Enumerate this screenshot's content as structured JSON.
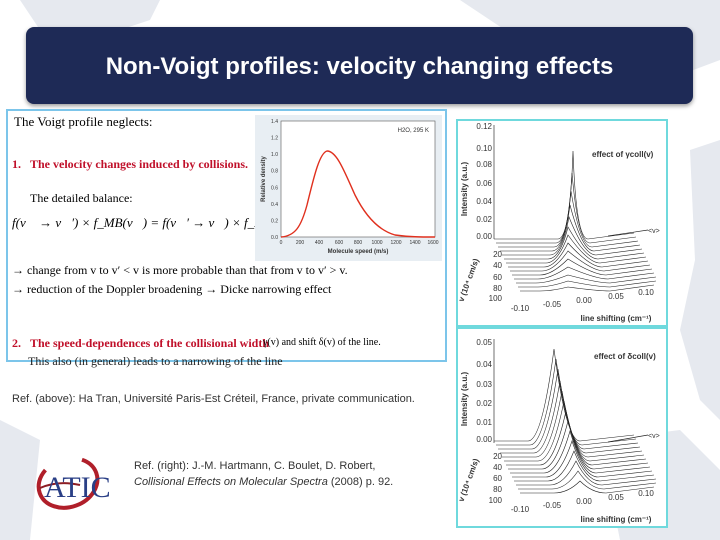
{
  "slide": {
    "title": "Non-Voigt profiles: velocity changing effects"
  },
  "left_panel": {
    "intro": "The Voigt profile neglects:",
    "item1_number": "1.",
    "item1_heading": "The velocity changes induced by collisions.",
    "balance_label": "The detailed balance:",
    "equation": "f(v⃗ → v⃗′) × f_MB(v⃗) = f(v⃗′ → v⃗) × f_MB(v⃗′)",
    "bullet1": "→ change from v to v′ < v is more probable than that from v to v′ > v.",
    "bullet2": "→ reduction of the Doppler broadening → Dicke narrowing effect",
    "item2_number": "2.",
    "item2_heading": "The speed-dependences of the collisional width",
    "item2_rest": "γ(v) and shift δ(v) of the line.",
    "item2_followup": "This also (in general) leads to a narrowing of the line"
  },
  "speed_plot": {
    "annotation": "H2O, 295 K",
    "ylabel": "Relative density",
    "xlabel": "Molecule speed (m/s)",
    "yticks": [
      "0.0",
      "0.2",
      "0.4",
      "0.6",
      "0.8",
      "1.0",
      "1.2",
      "1.4"
    ],
    "xticks": [
      "0",
      "200",
      "400",
      "600",
      "800",
      "1000",
      "1200",
      "1400",
      "1600"
    ]
  },
  "refs": {
    "above": "Ref. (above): Ha Tran, Université Paris-Est Créteil, France, private communication.",
    "right_line1": "Ref. (right): J.-M. Hartmann, C. Boulet, D. Robert,",
    "right_line2_italic": "Collisional Effects on Molecular Spectra",
    "right_line2_rest": " (2008) p. 92."
  },
  "logo": {
    "text": "ATIC"
  },
  "top_plot": {
    "effect_label": "effect of γcoll(v)",
    "ylabel": "Intensity (a.u.)",
    "yticks": [
      "0.12",
      "0.10",
      "0.08",
      "0.06",
      "0.04",
      "0.02",
      "0.00"
    ],
    "v_axis_label": "v (10⁴ cm/s)",
    "v_ticks": [
      "20",
      "40",
      "60",
      "80",
      "100"
    ],
    "v_mean": "<v>",
    "xticks": [
      "-0.10",
      "-0.05",
      "0.00",
      "0.05",
      "0.10"
    ],
    "xlabel": "line shifting (cm⁻¹)"
  },
  "bottom_plot": {
    "effect_label": "effect of δcoll(v)",
    "ylabel": "Intensity (a.u.)",
    "yticks": [
      "0.05",
      "0.04",
      "0.03",
      "0.02",
      "0.01",
      "0.00"
    ],
    "v_axis_label": "v (10⁴ cm/s)",
    "v_ticks": [
      "20",
      "40",
      "60",
      "80",
      "100"
    ],
    "v_mean": "<v>",
    "xticks": [
      "-0.10",
      "-0.05",
      "0.00",
      "0.05",
      "0.10"
    ],
    "xlabel": "line shifting (cm⁻¹)"
  },
  "colors": {
    "title_bg": "#1e2a56",
    "heading_red": "#c0102a",
    "left_border": "#7cc5ea",
    "right_border": "#6fd9dd",
    "curve": "#e0301e"
  }
}
